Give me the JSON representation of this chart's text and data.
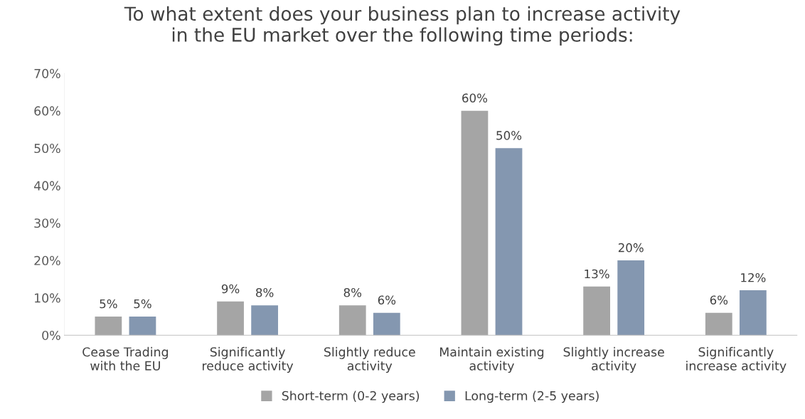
{
  "chart_data": {
    "type": "bar",
    "title": "To what extent does your business plan to increase activity\nin the EU market over the following time periods:",
    "categories": [
      "Cease Trading\nwith the EU",
      "Significantly\nreduce activity",
      "Slightly reduce\nactivity",
      "Maintain existing\nactivity",
      "Slightly increase\nactivity",
      "Significantly\nincrease activity"
    ],
    "series": [
      {
        "name": "Short-term (0-2 years)",
        "color": "#a5a5a5",
        "values": [
          5,
          9,
          8,
          60,
          13,
          6
        ],
        "value_labels": [
          "5%",
          "9%",
          "8%",
          "60%",
          "13%",
          "6%"
        ]
      },
      {
        "name": "Long-term (2-5 years)",
        "color": "#8497b0",
        "values": [
          5,
          8,
          6,
          50,
          20,
          12
        ],
        "value_labels": [
          "5%",
          "8%",
          "6%",
          "50%",
          "20%",
          "12%"
        ]
      }
    ],
    "ylim": [
      0,
      70
    ],
    "yticks": [
      {
        "value": 0,
        "label": "0%"
      },
      {
        "value": 10,
        "label": "10%"
      },
      {
        "value": 20,
        "label": "20%"
      },
      {
        "value": 30,
        "label": "30%"
      },
      {
        "value": 40,
        "label": "40%"
      },
      {
        "value": 50,
        "label": "50%"
      },
      {
        "value": 60,
        "label": "60%"
      },
      {
        "value": 70,
        "label": "70%"
      }
    ],
    "grid": false,
    "legend": "bottom"
  }
}
